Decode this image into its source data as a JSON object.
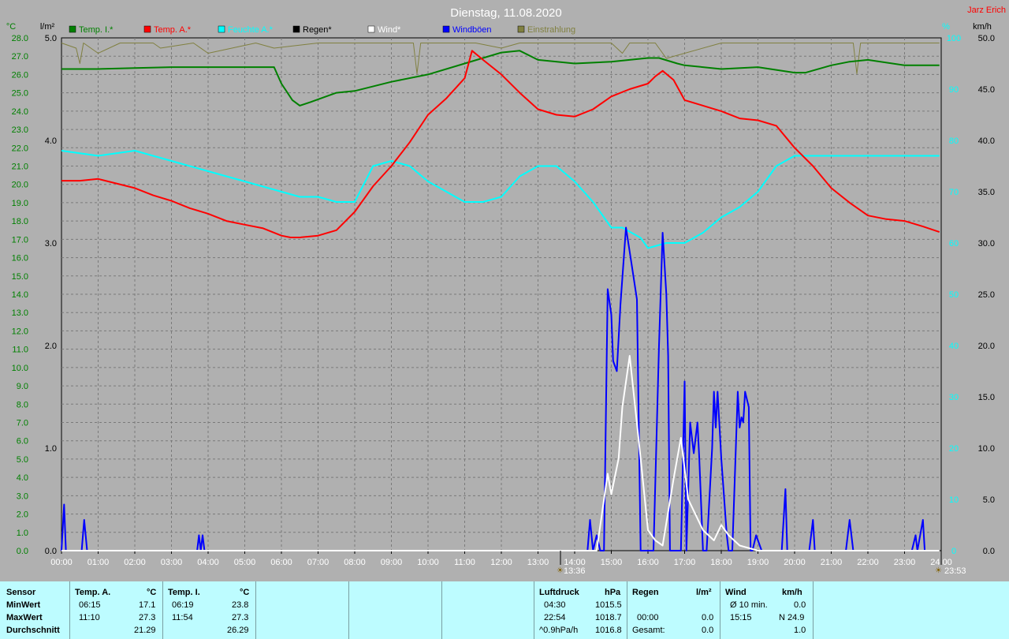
{
  "header": {
    "title": "Dienstag, 11.08.2020",
    "author": "Jarz Erich"
  },
  "colors": {
    "background": "#b0b0b0",
    "temp_inside": "#008000",
    "temp_outside": "#ff0000",
    "humidity": "#00ffff",
    "rain": "#000000",
    "wind": "#ffffff",
    "gusts": "#0000ff",
    "radiation": "#808040",
    "table_bg": "#bdfcff"
  },
  "axes": {
    "left_temp_unit": "°C",
    "rain_unit": "l/m²",
    "humidity_unit": "%",
    "wind_unit": "km/h",
    "left_temp_ticks": [
      "28.0",
      "27.0",
      "26.0",
      "25.0",
      "24.0",
      "23.0",
      "22.0",
      "21.0",
      "20.0",
      "19.0",
      "18.0",
      "17.0",
      "16.0",
      "15.0",
      "14.0",
      "13.0",
      "12.0",
      "11.0",
      "10.0",
      "9.0",
      "8.0",
      "7.0",
      "6.0",
      "5.0",
      "4.0",
      "3.0",
      "2.0",
      "1.0",
      "0.0"
    ],
    "rain_ticks": [
      "5.0",
      "4.0",
      "3.0",
      "2.0",
      "1.0",
      "0.0"
    ],
    "humidity_ticks": [
      "100",
      "90",
      "80",
      "70",
      "60",
      "50",
      "40",
      "30",
      "20",
      "10",
      "0"
    ],
    "wind_ticks": [
      "50.0",
      "45.0",
      "40.0",
      "35.0",
      "30.0",
      "25.0",
      "20.0",
      "15.0",
      "10.0",
      "5.0",
      "0.0"
    ],
    "x_ticks": [
      "00:00",
      "01:00",
      "02:00",
      "03:00",
      "04:00",
      "05:00",
      "06:00",
      "07:00",
      "08:00",
      "09:00",
      "10:00",
      "11:00",
      "12:00",
      "13:00",
      "14:00",
      "15:00",
      "16:00",
      "17:00",
      "18:00",
      "19:00",
      "20:00",
      "21:00",
      "22:00",
      "23:00",
      "24:00"
    ],
    "sunrise_label": "13:36",
    "sunset_label": "23:53"
  },
  "chart_data": {
    "type": "line",
    "title": "Dienstag, 11.08.2020",
    "ylim_temp": [
      0,
      28
    ],
    "ylim_rain": [
      0,
      5
    ],
    "ylim_humidity": [
      0,
      100
    ],
    "ylim_wind": [
      0,
      50
    ],
    "x_range_hours": [
      0,
      24
    ],
    "series": [
      {
        "name": "Temp. I.*",
        "axis": "temp",
        "x": [
          0,
          1,
          2,
          3,
          4,
          5,
          5.8,
          6,
          6.3,
          6.5,
          6.8,
          7.5,
          8,
          9,
          10,
          11,
          11.5,
          12,
          12.5,
          13,
          14,
          15,
          16,
          16.3,
          16.8,
          17,
          17.5,
          18,
          19,
          20,
          20.3,
          21,
          21.5,
          22,
          23,
          23.95
        ],
        "y": [
          26.3,
          26.3,
          26.35,
          26.4,
          26.4,
          26.4,
          26.4,
          25.5,
          24.6,
          24.3,
          24.5,
          25.0,
          25.1,
          25.6,
          26.0,
          26.6,
          26.9,
          27.2,
          27.3,
          26.8,
          26.6,
          26.7,
          26.9,
          26.9,
          26.6,
          26.5,
          26.4,
          26.3,
          26.4,
          26.1,
          26.1,
          26.5,
          26.7,
          26.8,
          26.5,
          26.5
        ]
      },
      {
        "name": "Temp. A.*",
        "axis": "temp",
        "x": [
          0,
          0.5,
          1,
          2,
          2.5,
          3,
          3.5,
          4,
          4.5,
          5,
          5.5,
          6,
          6.25,
          6.5,
          7,
          7.5,
          8,
          8.5,
          9,
          9.5,
          10,
          10.5,
          11,
          11.2,
          11.5,
          12,
          12.5,
          13,
          13.5,
          14,
          14.5,
          15,
          15.5,
          16,
          16.2,
          16.4,
          16.7,
          17,
          17.5,
          18,
          18.5,
          19,
          19.5,
          20,
          20.5,
          21,
          21.5,
          22,
          22.5,
          23,
          23.5,
          23.95
        ],
        "y": [
          20.2,
          20.2,
          20.3,
          19.8,
          19.4,
          19.1,
          18.7,
          18.4,
          18.0,
          17.8,
          17.6,
          17.2,
          17.1,
          17.1,
          17.2,
          17.5,
          18.5,
          19.9,
          21.0,
          22.3,
          23.8,
          24.7,
          25.8,
          27.3,
          26.8,
          26.0,
          25.0,
          24.1,
          23.8,
          23.7,
          24.1,
          24.8,
          25.2,
          25.5,
          25.9,
          26.2,
          25.7,
          24.6,
          24.3,
          24.0,
          23.6,
          23.5,
          23.2,
          22.0,
          21.0,
          19.8,
          19.0,
          18.3,
          18.1,
          18.0,
          17.7,
          17.4
        ]
      },
      {
        "name": "Feuchte A.*",
        "axis": "humidity",
        "x": [
          0,
          1,
          2,
          3,
          4,
          5,
          6,
          6.5,
          7,
          7.5,
          8,
          8.5,
          9,
          9.5,
          10,
          10.5,
          11,
          11.5,
          12,
          12.5,
          13,
          13.5,
          14,
          14.5,
          15,
          15.3,
          15.8,
          16,
          16.5,
          17,
          17.5,
          18,
          18.5,
          19,
          19.5,
          20,
          21,
          22,
          23,
          23.95
        ],
        "y": [
          78,
          77,
          78,
          76,
          74,
          72,
          70,
          69,
          69,
          68,
          68,
          75,
          76,
          75,
          72,
          70,
          68,
          68,
          69,
          73,
          75,
          75,
          72,
          68,
          63,
          63,
          61,
          59,
          60,
          60,
          62,
          65,
          67,
          70,
          75,
          77,
          77,
          77,
          77,
          77
        ]
      },
      {
        "name": "Regen*",
        "axis": "rain",
        "x": [
          0,
          23.95
        ],
        "y": [
          0,
          0
        ]
      },
      {
        "name": "Wind*",
        "axis": "wind",
        "x": [
          0,
          14.6,
          14.9,
          15.0,
          15.2,
          15.3,
          15.5,
          15.8,
          16.0,
          16.2,
          16.4,
          16.7,
          16.9,
          17.1,
          17.5,
          17.8,
          18.0,
          18.2,
          18.5,
          18.8,
          19.0,
          23.95
        ],
        "y": [
          0,
          0,
          7.5,
          5.5,
          9,
          14,
          19,
          9,
          2,
          1,
          0.5,
          7,
          11,
          5,
          2,
          1,
          2.5,
          1.5,
          0.5,
          0.2,
          0,
          0
        ]
      },
      {
        "name": "Windböen",
        "axis": "wind",
        "x": [
          0,
          0.07,
          0.12,
          0.2,
          0.55,
          0.62,
          0.7,
          3.7,
          3.75,
          3.8,
          3.85,
          3.9,
          14.35,
          14.42,
          14.5,
          14.5,
          14.6,
          14.7,
          14.8,
          14.9,
          15.0,
          15.05,
          15.15,
          15.25,
          15.4,
          15.55,
          15.7,
          15.8,
          15.9,
          16.0,
          16.15,
          16.3,
          16.4,
          16.5,
          16.55,
          16.6,
          16.75,
          16.85,
          16.9,
          17.0,
          17.05,
          17.15,
          17.25,
          17.35,
          17.4,
          17.5,
          17.6,
          17.75,
          17.8,
          17.85,
          17.9,
          18.0,
          18.15,
          18.2,
          18.3,
          18.45,
          18.5,
          18.55,
          18.6,
          18.65,
          18.75,
          18.8,
          18.85,
          18.95,
          19.1,
          19.15,
          19.2,
          19.65,
          19.75,
          19.8,
          20.4,
          20.5,
          20.55,
          21.4,
          21.5,
          21.6,
          23.2,
          23.3,
          23.35,
          23.5,
          23.55,
          23.6
        ],
        "y": [
          0,
          4.5,
          0,
          0,
          0,
          3,
          0,
          0,
          1.5,
          0,
          1.5,
          0,
          0,
          3,
          0,
          0,
          1.5,
          0,
          0,
          25.5,
          23,
          18.5,
          17.5,
          24,
          31.5,
          28,
          24.5,
          0,
          0,
          0,
          0,
          20,
          31,
          25,
          19,
          0,
          0,
          0,
          0,
          16.5,
          0,
          12.5,
          9.5,
          12.5,
          9,
          0,
          0,
          10,
          15.5,
          12,
          15.5,
          9,
          1.5,
          0,
          0,
          15.5,
          12,
          13,
          12.5,
          15.5,
          14,
          0,
          0,
          1.5,
          0,
          0,
          0,
          0,
          6,
          0,
          0,
          3,
          0,
          0,
          3,
          0,
          0,
          1.5,
          0,
          3,
          0,
          0
        ]
      },
      {
        "name": "Einstrahlung",
        "axis": "humidity",
        "x": [
          0,
          0.4,
          0.5,
          0.6,
          1.0,
          1.6,
          2.5,
          2.7,
          3.6,
          4.0,
          5.3,
          5.8,
          7.0,
          8.0,
          9.6,
          9.7,
          9.8,
          10.5,
          11.3,
          12.0,
          12.5,
          13.0,
          15.0,
          15.3,
          15.5,
          16.2,
          16.5,
          18.0,
          19.5,
          20.3,
          21.6,
          21.7,
          21.8,
          23.0,
          23.95
        ],
        "y": [
          99,
          98,
          95,
          99,
          97,
          99,
          99,
          98,
          99,
          97,
          99,
          98,
          99,
          99,
          99,
          93,
          99,
          99,
          99,
          98,
          99,
          99,
          99,
          97,
          99,
          99,
          96,
          99,
          99,
          99,
          99,
          93,
          99,
          99,
          99
        ]
      }
    ]
  },
  "legend": [
    {
      "label": "Temp. I.*",
      "color": "#008000"
    },
    {
      "label": "Temp. A.*",
      "color": "#ff0000"
    },
    {
      "label": "Feuchte A.*",
      "color": "#00ffff"
    },
    {
      "label": "Regen*",
      "color": "#000000"
    },
    {
      "label": "Wind*",
      "color": "#ffffff"
    },
    {
      "label": "Windböen",
      "color": "#0000ff"
    },
    {
      "label": "Einstrahlung",
      "color": "#808040"
    }
  ],
  "table": {
    "sensor_header": "Sensor",
    "row_labels": [
      "MinWert",
      "MaxWert",
      "Durchschnitt"
    ],
    "temp_a": {
      "header": "Temp. A.",
      "unit": "°C",
      "min_time": "06:15",
      "min": "17.1",
      "max_time": "11:10",
      "max": "27.3",
      "avg": "21.29"
    },
    "temp_i": {
      "header": "Temp. I.",
      "unit": "°C",
      "min_time": "06:19",
      "min": "23.8",
      "max_time": "11:54",
      "max": "27.3",
      "avg": "26.29"
    },
    "pressure": {
      "header": "Luftdruck",
      "unit": "hPa",
      "r1_label": "04:30",
      "r1_value": "1015.5",
      "r2_label": "22:54",
      "r2_value": "1018.7",
      "r3_label": "^0.9hPa/h",
      "r3_value": "1016.8"
    },
    "rain": {
      "header": "Regen",
      "unit": "l/m²",
      "r2_label": "00:00",
      "r2_value": "0.0",
      "r3_label": "Gesamt:",
      "r3_value": "0.0"
    },
    "wind": {
      "header": "Wind",
      "unit": "km/h",
      "r1_label": "Ø 10 min.",
      "r1_value": "0.0",
      "r2_label": "15:15",
      "r2_value": "N 24.9",
      "r3_value": "1.0"
    }
  }
}
